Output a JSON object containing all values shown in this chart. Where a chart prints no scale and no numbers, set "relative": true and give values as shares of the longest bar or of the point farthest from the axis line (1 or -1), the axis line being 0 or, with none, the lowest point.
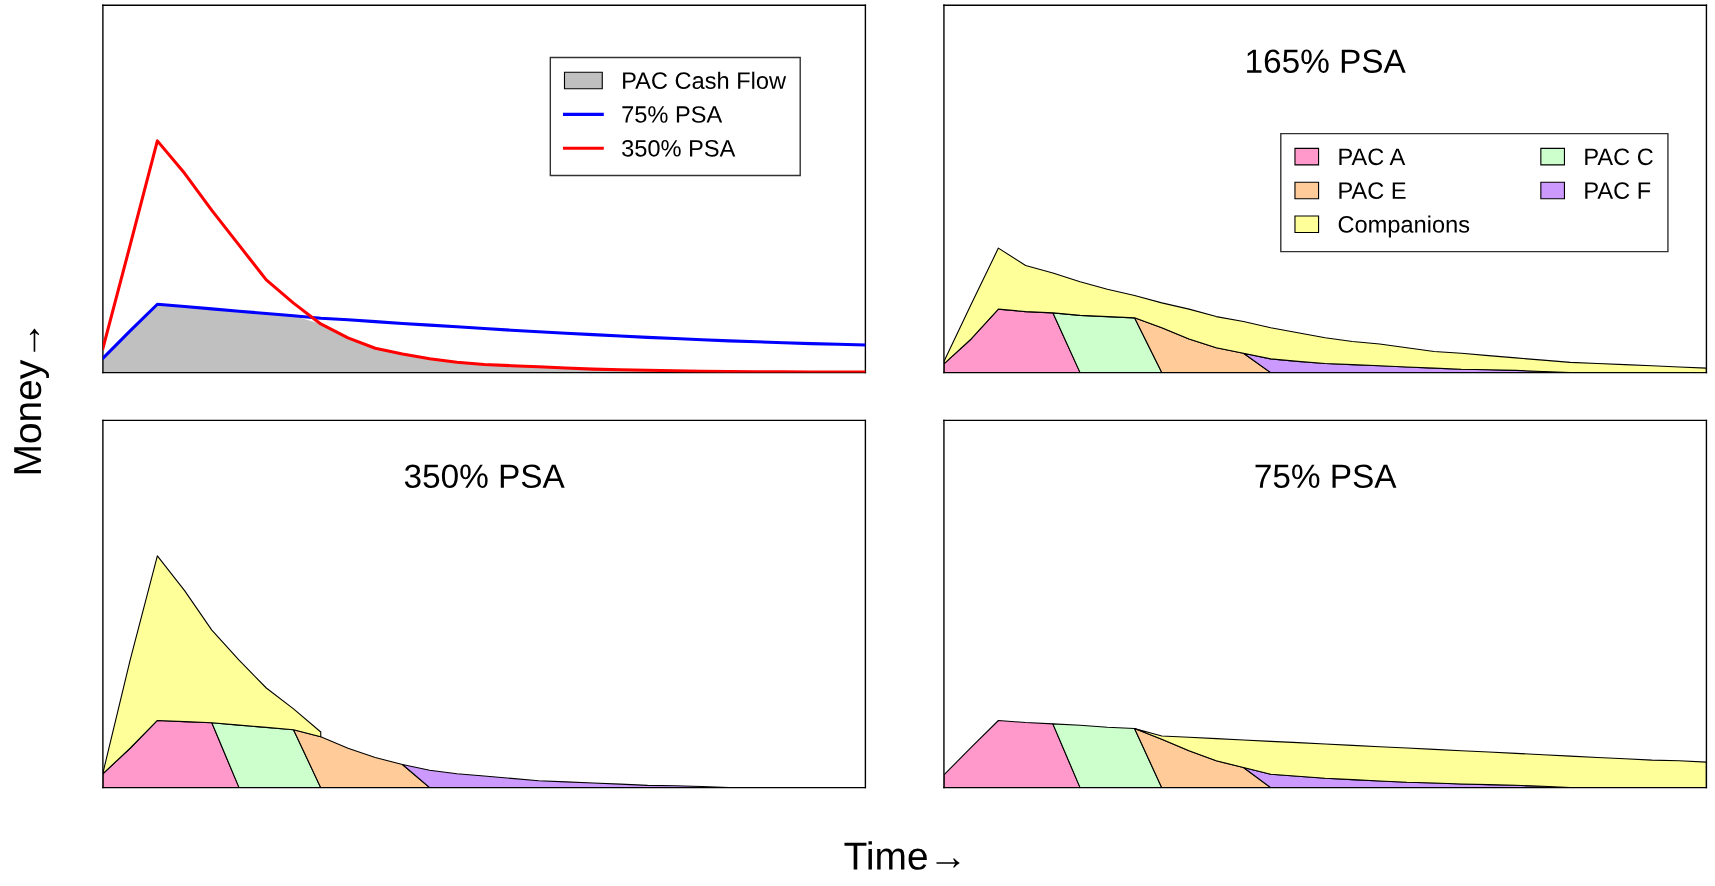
{
  "chart_data": [
    {
      "type": "area",
      "relative": true,
      "ylabel": "Money→",
      "tick_labels": false,
      "legend": "top right",
      "categories": [
        null,
        null,
        null,
        null,
        null,
        null,
        null,
        null,
        null,
        null,
        null,
        null,
        null,
        null,
        null,
        null,
        null,
        null,
        null,
        null,
        null,
        null,
        null,
        null,
        null,
        null,
        null,
        null,
        null
      ],
      "series": [
        {
          "name": "PAC Cash Flow",
          "type": "area",
          "color": "#c0c0c0",
          "values": [
            0.062,
            0.18,
            0.295,
            0.285,
            0.275,
            0.265,
            0.255,
            0.245,
            0.21,
            0.15,
            0.105,
            0.08,
            0.06,
            0.045,
            0.035,
            0.03,
            0.025,
            0.02,
            0.015,
            0.012,
            0.01,
            0.008,
            0.006,
            0.005,
            0.004,
            0.004,
            0.003,
            0.003,
            0.003
          ]
        },
        {
          "name": "75% PSA",
          "type": "line",
          "color": "#0000ff",
          "values": [
            0.062,
            0.18,
            0.295,
            0.285,
            0.275,
            0.265,
            0.255,
            0.245,
            0.235,
            0.228,
            0.22,
            0.212,
            0.205,
            0.198,
            0.19,
            0.183,
            0.176,
            0.17,
            0.164,
            0.158,
            0.152,
            0.147,
            0.142,
            0.137,
            0.133,
            0.129,
            0.125,
            0.122,
            0.119
          ]
        },
        {
          "name": "350% PSA",
          "type": "line",
          "color": "#ff0000",
          "values": [
            0.105,
            0.55,
            1,
            0.86,
            0.7,
            0.55,
            0.4,
            0.3,
            0.21,
            0.15,
            0.105,
            0.08,
            0.06,
            0.045,
            0.035,
            0.03,
            0.025,
            0.02,
            0.015,
            0.012,
            0.01,
            0.008,
            0.006,
            0.005,
            0.004,
            0.004,
            0.003,
            0.003,
            0.003
          ]
        }
      ]
    },
    {
      "type": "area",
      "relative": true,
      "stacked": true,
      "title": "165% PSA",
      "tick_labels": false,
      "legend": "right",
      "categories": [
        null,
        null,
        null,
        null,
        null,
        null,
        null,
        null,
        null,
        null,
        null,
        null,
        null,
        null,
        null,
        null,
        null,
        null,
        null,
        null,
        null,
        null,
        null,
        null,
        null,
        null,
        null,
        null,
        null
      ],
      "series": [
        {
          "name": "PAC A",
          "color": "#ff99cc",
          "values": [
            0.07,
            0.27,
            0.51,
            0.49,
            0.48,
            0,
            null,
            null,
            null,
            null,
            null,
            null,
            null,
            null,
            null,
            null,
            null,
            null,
            null,
            null,
            null,
            null,
            null,
            null,
            null,
            null,
            null,
            null,
            null
          ]
        },
        {
          "name": "PAC C",
          "color": "#ccffcc",
          "values": [
            null,
            null,
            null,
            null,
            0,
            0.46,
            0.45,
            0.44,
            0,
            null,
            null,
            null,
            null,
            null,
            null,
            null,
            null,
            null,
            null,
            null,
            null,
            null,
            null,
            null,
            null,
            null,
            null,
            null,
            null
          ]
        },
        {
          "name": "PAC E",
          "color": "#ffcc99",
          "values": [
            null,
            null,
            null,
            null,
            null,
            null,
            null,
            0,
            0.36,
            0.27,
            0.2,
            0.155,
            0,
            null,
            null,
            null,
            null,
            null,
            null,
            null,
            null,
            null,
            null,
            null,
            null,
            null,
            null,
            null,
            null
          ]
        },
        {
          "name": "PAC F",
          "color": "#cc99ff",
          "values": [
            null,
            null,
            null,
            null,
            null,
            null,
            null,
            null,
            null,
            null,
            null,
            0,
            0.11,
            0.09,
            0.073,
            0.064,
            0.055,
            0.045,
            0.036,
            0.027,
            0.023,
            0.018,
            0.009,
            0,
            null,
            null,
            null,
            null,
            null
          ]
        },
        {
          "name": "Companions",
          "color": "#ffff99",
          "values": [
            0.02,
            0.28,
            0.49,
            0.37,
            0.32,
            0.27,
            0.22,
            0.18,
            0.2,
            0.24,
            0.25,
            0.255,
            0.25,
            0.23,
            0.207,
            0.186,
            0.175,
            0.155,
            0.134,
            0.128,
            0.113,
            0.1,
            0.091,
            0.082,
            0.073,
            0.064,
            0.055,
            0.045,
            0.036
          ]
        }
      ]
    },
    {
      "type": "area",
      "relative": true,
      "stacked": true,
      "title": "350% PSA",
      "tick_labels": false,
      "categories": [
        null,
        null,
        null,
        null,
        null,
        null,
        null,
        null,
        null,
        null,
        null,
        null,
        null,
        null,
        null,
        null,
        null,
        null,
        null,
        null,
        null,
        null,
        null,
        null,
        null,
        null,
        null,
        null,
        null
      ],
      "series": [
        {
          "color": "#ff99cc",
          "values": [
            0.06,
            0.17,
            0.29,
            0.285,
            0.28,
            0,
            null,
            null,
            null,
            null,
            null,
            null,
            null,
            null,
            null,
            null,
            null,
            null,
            null,
            null,
            null,
            null,
            null,
            null,
            null,
            null,
            null,
            null,
            null
          ]
        },
        {
          "color": "#ccffcc",
          "values": [
            null,
            null,
            null,
            null,
            0,
            0.27,
            0.26,
            0.25,
            0,
            null,
            null,
            null,
            null,
            null,
            null,
            null,
            null,
            null,
            null,
            null,
            null,
            null,
            null,
            null,
            null,
            null,
            null,
            null,
            null
          ]
        },
        {
          "color": "#ffcc99",
          "values": [
            null,
            null,
            null,
            null,
            null,
            null,
            null,
            0,
            0.22,
            0.17,
            0.13,
            0.1,
            0,
            null,
            null,
            null,
            null,
            null,
            null,
            null,
            null,
            null,
            null,
            null,
            null,
            null,
            null,
            null,
            null
          ]
        },
        {
          "color": "#cc99ff",
          "values": [
            null,
            null,
            null,
            null,
            null,
            null,
            null,
            null,
            null,
            null,
            null,
            0,
            0.075,
            0.06,
            0.05,
            0.04,
            0.03,
            0.025,
            0.02,
            0.015,
            0.01,
            0.008,
            0.005,
            0,
            null,
            null,
            null,
            null,
            null
          ]
        },
        {
          "color": "#ffff99",
          "values": [
            0.003,
            0.38,
            0.71,
            0.565,
            0.4,
            0.28,
            0.17,
            0.09,
            0.02,
            null,
            null,
            null,
            null,
            null,
            null,
            null,
            null,
            null,
            null,
            null,
            null,
            null,
            null,
            null,
            null,
            null,
            null,
            null,
            null
          ]
        }
      ]
    },
    {
      "type": "area",
      "relative": true,
      "stacked": true,
      "title": "75% PSA",
      "xlabel": "Time→",
      "tick_labels": false,
      "categories": [
        null,
        null,
        null,
        null,
        null,
        null,
        null,
        null,
        null,
        null,
        null,
        null,
        null,
        null,
        null,
        null,
        null,
        null,
        null,
        null,
        null,
        null,
        null,
        null,
        null,
        null,
        null,
        null,
        null
      ],
      "series": [
        {
          "color": "#ff99cc",
          "values": [
            0.19,
            0.6,
            1,
            0.97,
            0.95,
            0,
            null,
            null,
            null,
            null,
            null,
            null,
            null,
            null,
            null,
            null,
            null,
            null,
            null,
            null,
            null,
            null,
            null,
            null,
            null,
            null,
            null,
            null,
            null
          ]
        },
        {
          "color": "#ccffcc",
          "values": [
            null,
            null,
            null,
            null,
            0,
            0.93,
            0.9,
            0.88,
            0,
            null,
            null,
            null,
            null,
            null,
            null,
            null,
            null,
            null,
            null,
            null,
            null,
            null,
            null,
            null,
            null,
            null,
            null,
            null,
            null
          ]
        },
        {
          "color": "#ffcc99",
          "values": [
            null,
            null,
            null,
            null,
            null,
            null,
            null,
            0,
            0.72,
            0.55,
            0.4,
            0.3,
            0,
            null,
            null,
            null,
            null,
            null,
            null,
            null,
            null,
            null,
            null,
            null,
            null,
            null,
            null,
            null,
            null
          ]
        },
        {
          "color": "#cc99ff",
          "values": [
            null,
            null,
            null,
            null,
            null,
            null,
            null,
            null,
            null,
            null,
            null,
            0,
            0.2,
            0.17,
            0.14,
            0.12,
            0.1,
            0.08,
            0.07,
            0.055,
            0.045,
            0.035,
            0.02,
            0,
            null,
            null,
            null,
            null,
            null
          ]
        },
        {
          "color": "#ffff99",
          "values": [
            null,
            null,
            null,
            null,
            null,
            null,
            null,
            0,
            0.05,
            0.2,
            0.33,
            0.41,
            0.49,
            0.5,
            0.51,
            0.51,
            0.51,
            0.51,
            0.5,
            0.495,
            0.485,
            0.475,
            0.47,
            0.47,
            0.45,
            0.43,
            0.41,
            0.4,
            0.38
          ]
        }
      ]
    }
  ]
}
